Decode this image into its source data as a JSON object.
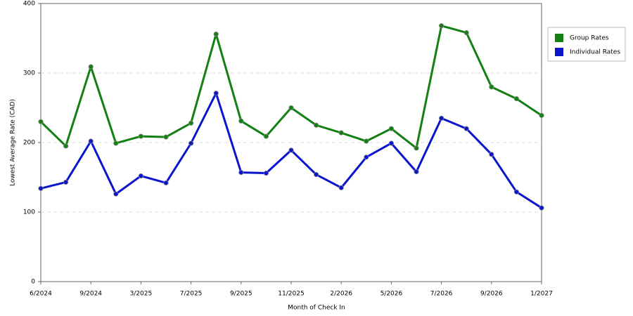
{
  "chart_data": {
    "type": "line",
    "x_label": "Month of Check In",
    "y_label": "Lowest Average Rate (CAD)",
    "categories": [
      "6/2024",
      null,
      "9/2024",
      null,
      "3/2025",
      null,
      "7/2025",
      null,
      "9/2025",
      null,
      "11/2025",
      null,
      "2/2026",
      null,
      "5/2026",
      null,
      "7/2026",
      null,
      "9/2026",
      null,
      "1/2027"
    ],
    "series": [
      {
        "name": "Group Rates",
        "color": "#138013",
        "values": [
          230,
          195,
          309,
          199,
          209,
          208,
          228,
          356,
          231,
          209,
          250,
          225,
          214,
          202,
          220,
          192,
          368,
          358,
          280,
          263,
          239
        ]
      },
      {
        "name": "Individual Rates",
        "color": "#0b15cc",
        "values": [
          134,
          143,
          202,
          126,
          152,
          142,
          199,
          271,
          157,
          156,
          189,
          154,
          135,
          179,
          199,
          158,
          235,
          220,
          183,
          129,
          106
        ]
      }
    ],
    "ylim": [
      0,
      400
    ],
    "yticks": [
      0,
      100,
      200,
      300,
      400
    ],
    "grid": true,
    "legend": "right"
  }
}
